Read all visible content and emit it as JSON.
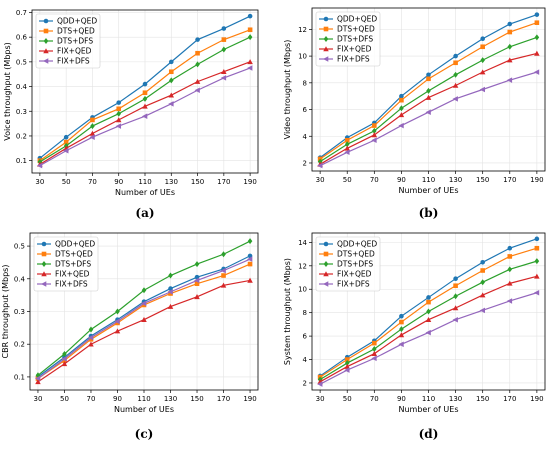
{
  "colors": {
    "QDD+QED": "#1f77b4",
    "DTS+QED": "#ff7f0e",
    "DTS+DFS": "#2ca02c",
    "FIX+QED": "#d62728",
    "FIX+DFS": "#9467bd"
  },
  "chart_data": [
    {
      "type": "line",
      "caption": "(a)",
      "xlabel": "Number of UEs",
      "ylabel": "Voice throughput (Mbps)",
      "x": [
        30,
        50,
        70,
        90,
        110,
        130,
        150,
        170,
        190
      ],
      "x_ticks": [
        "30",
        "50",
        "70",
        "90",
        "110",
        "130",
        "150",
        "170",
        "190"
      ],
      "ylim": [
        0.05,
        0.71
      ],
      "y_ticks": [
        "0.1",
        "0.2",
        "0.3",
        "0.4",
        "0.5",
        "0.6",
        "0.7"
      ],
      "y_tick_values": [
        0.1,
        0.2,
        0.3,
        0.4,
        0.5,
        0.6,
        0.7
      ],
      "grid": true,
      "legend": "top-left",
      "series": [
        {
          "name": "QDD+QED",
          "marker": "circle",
          "values": [
            0.11,
            0.195,
            0.275,
            0.335,
            0.41,
            0.5,
            0.59,
            0.635,
            0.685
          ]
        },
        {
          "name": "DTS+QED",
          "marker": "square",
          "values": [
            0.1,
            0.175,
            0.265,
            0.31,
            0.375,
            0.46,
            0.535,
            0.59,
            0.63
          ]
        },
        {
          "name": "DTS+DFS",
          "marker": "diamond",
          "values": [
            0.095,
            0.16,
            0.24,
            0.29,
            0.35,
            0.425,
            0.49,
            0.55,
            0.6
          ]
        },
        {
          "name": "FIX+QED",
          "marker": "triangle",
          "values": [
            0.085,
            0.15,
            0.21,
            0.265,
            0.32,
            0.365,
            0.42,
            0.46,
            0.5
          ]
        },
        {
          "name": "FIX+DFS",
          "marker": "tri_left",
          "values": [
            0.08,
            0.14,
            0.195,
            0.24,
            0.28,
            0.33,
            0.385,
            0.435,
            0.475
          ]
        }
      ]
    },
    {
      "type": "line",
      "caption": "(b)",
      "xlabel": "Number of UEs",
      "ylabel": "Video throughput (Mbps)",
      "x": [
        30,
        50,
        70,
        90,
        110,
        130,
        150,
        170,
        190
      ],
      "x_ticks": [
        "30",
        "50",
        "70",
        "90",
        "110",
        "130",
        "150",
        "170",
        "190"
      ],
      "ylim": [
        1.4,
        13.6
      ],
      "y_ticks": [
        "2",
        "4",
        "6",
        "8",
        "10",
        "12"
      ],
      "y_tick_values": [
        2,
        4,
        6,
        8,
        10,
        12
      ],
      "grid": true,
      "legend": "top-left",
      "series": [
        {
          "name": "QDD+QED",
          "marker": "circle",
          "values": [
            2.4,
            3.9,
            5.0,
            7.0,
            8.6,
            10.0,
            11.3,
            12.4,
            13.1
          ]
        },
        {
          "name": "DTS+QED",
          "marker": "square",
          "values": [
            2.3,
            3.7,
            4.8,
            6.7,
            8.3,
            9.5,
            10.7,
            11.8,
            12.5
          ]
        },
        {
          "name": "DTS+DFS",
          "marker": "diamond",
          "values": [
            2.1,
            3.4,
            4.4,
            6.1,
            7.4,
            8.6,
            9.7,
            10.7,
            11.4
          ]
        },
        {
          "name": "FIX+QED",
          "marker": "triangle",
          "values": [
            1.9,
            3.1,
            4.1,
            5.6,
            6.9,
            7.8,
            8.8,
            9.7,
            10.2
          ]
        },
        {
          "name": "FIX+DFS",
          "marker": "tri_left",
          "values": [
            1.8,
            2.8,
            3.7,
            4.8,
            5.8,
            6.8,
            7.5,
            8.2,
            8.8
          ]
        }
      ]
    },
    {
      "type": "line",
      "caption": "(c)",
      "xlabel": "Number of UEs",
      "ylabel": "CBR throughput (Mbps)",
      "x": [
        30,
        50,
        70,
        90,
        110,
        130,
        150,
        170,
        190
      ],
      "x_ticks": [
        "30",
        "50",
        "70",
        "90",
        "110",
        "130",
        "150",
        "170",
        "190"
      ],
      "ylim": [
        0.06,
        0.54
      ],
      "y_ticks": [
        "0.1",
        "0.2",
        "0.3",
        "0.4",
        "0.5"
      ],
      "y_tick_values": [
        0.1,
        0.2,
        0.3,
        0.4,
        0.5
      ],
      "grid": true,
      "legend": "top-left",
      "series": [
        {
          "name": "QDD+QED",
          "marker": "circle",
          "values": [
            0.1,
            0.16,
            0.225,
            0.275,
            0.33,
            0.37,
            0.405,
            0.43,
            0.47
          ]
        },
        {
          "name": "DTS+QED",
          "marker": "square",
          "values": [
            0.095,
            0.15,
            0.215,
            0.265,
            0.32,
            0.355,
            0.385,
            0.41,
            0.445
          ]
        },
        {
          "name": "DTS+DFS",
          "marker": "diamond",
          "values": [
            0.105,
            0.17,
            0.245,
            0.3,
            0.365,
            0.41,
            0.445,
            0.475,
            0.515
          ]
        },
        {
          "name": "FIX+QED",
          "marker": "triangle",
          "values": [
            0.085,
            0.14,
            0.2,
            0.24,
            0.275,
            0.315,
            0.345,
            0.38,
            0.395
          ]
        },
        {
          "name": "FIX+DFS",
          "marker": "tri_left",
          "values": [
            0.095,
            0.155,
            0.22,
            0.27,
            0.325,
            0.36,
            0.395,
            0.425,
            0.46
          ]
        }
      ]
    },
    {
      "type": "line",
      "caption": "(d)",
      "xlabel": "Number of UEs",
      "ylabel": "System throughput (Mbps)",
      "x": [
        30,
        50,
        70,
        90,
        110,
        130,
        150,
        170,
        190
      ],
      "x_ticks": [
        "30",
        "50",
        "70",
        "90",
        "110",
        "130",
        "150",
        "170",
        "190"
      ],
      "ylim": [
        1.4,
        14.8
      ],
      "y_ticks": [
        "2",
        "4",
        "6",
        "8",
        "10",
        "12",
        "14"
      ],
      "y_tick_values": [
        2,
        4,
        6,
        8,
        10,
        12,
        14
      ],
      "grid": true,
      "legend": "top-left",
      "series": [
        {
          "name": "QDD+QED",
          "marker": "circle",
          "values": [
            2.6,
            4.2,
            5.6,
            7.7,
            9.3,
            10.9,
            12.3,
            13.5,
            14.3
          ]
        },
        {
          "name": "DTS+QED",
          "marker": "square",
          "values": [
            2.5,
            4.0,
            5.4,
            7.2,
            8.9,
            10.3,
            11.6,
            12.8,
            13.5
          ]
        },
        {
          "name": "DTS+DFS",
          "marker": "diamond",
          "values": [
            2.3,
            3.7,
            4.9,
            6.6,
            8.1,
            9.4,
            10.6,
            11.7,
            12.4
          ]
        },
        {
          "name": "FIX+QED",
          "marker": "triangle",
          "values": [
            2.1,
            3.4,
            4.5,
            6.1,
            7.4,
            8.4,
            9.5,
            10.5,
            11.1
          ]
        },
        {
          "name": "FIX+DFS",
          "marker": "tri_left",
          "values": [
            1.9,
            3.1,
            4.1,
            5.3,
            6.3,
            7.4,
            8.2,
            9.0,
            9.7
          ]
        }
      ]
    }
  ]
}
